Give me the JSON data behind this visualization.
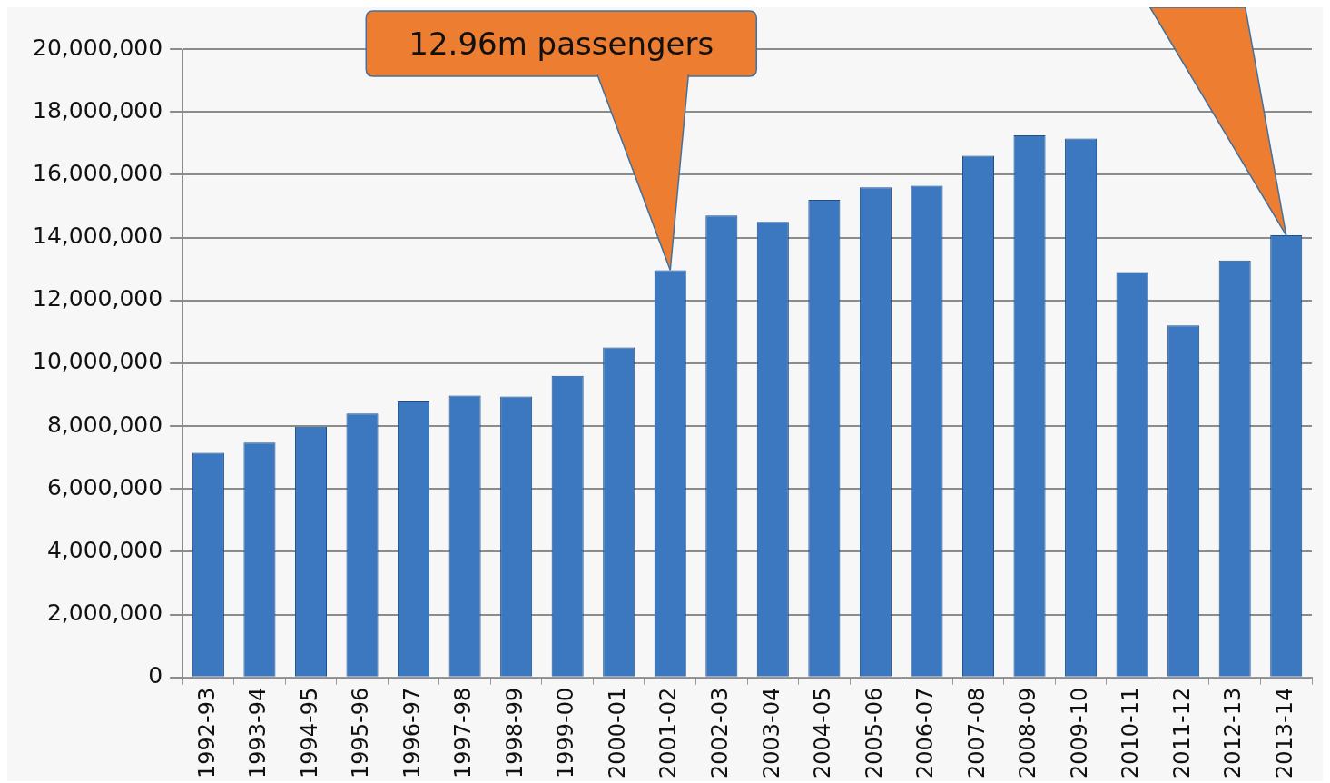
{
  "chart_data": {
    "type": "bar",
    "categories": [
      "1992-93",
      "1993-94",
      "1994-95",
      "1995-96",
      "1996-97",
      "1997-98",
      "1998-99",
      "1999-00",
      "2000-01",
      "2001-02",
      "2002-03",
      "2003-04",
      "2004-05",
      "2005-06",
      "2006-07",
      "2007-08",
      "2008-09",
      "2009-10",
      "2010-11",
      "2011-12",
      "2012-13",
      "2013-14"
    ],
    "values": [
      7150000,
      7470000,
      7980000,
      8400000,
      8780000,
      8970000,
      8940000,
      9600000,
      10500000,
      12960000,
      14700000,
      14500000,
      15200000,
      15600000,
      15650000,
      16600000,
      17250000,
      17150000,
      12900000,
      11200000,
      13270000,
      14070000
    ],
    "color": "#3b78c0",
    "ylim": [
      0,
      20000000
    ],
    "yticks": [
      {
        "value": 0,
        "label": "0"
      },
      {
        "value": 2000000,
        "label": "2,000,000"
      },
      {
        "value": 4000000,
        "label": "4,000,000"
      },
      {
        "value": 6000000,
        "label": "6,000,000"
      },
      {
        "value": 8000000,
        "label": "8,000,000"
      },
      {
        "value": 10000000,
        "label": "10,000,000"
      },
      {
        "value": 12000000,
        "label": "12,000,000"
      },
      {
        "value": 14000000,
        "label": "14,000,000"
      },
      {
        "value": 16000000,
        "label": "16,000,000"
      },
      {
        "value": 18000000,
        "label": "18,000,000"
      },
      {
        "value": 20000000,
        "label": "20,000,000"
      }
    ],
    "grid": "y",
    "legend": false,
    "annotations": [
      {
        "text": "12.96m passengers",
        "x": "2001-02",
        "y": 12960000
      }
    ]
  }
}
